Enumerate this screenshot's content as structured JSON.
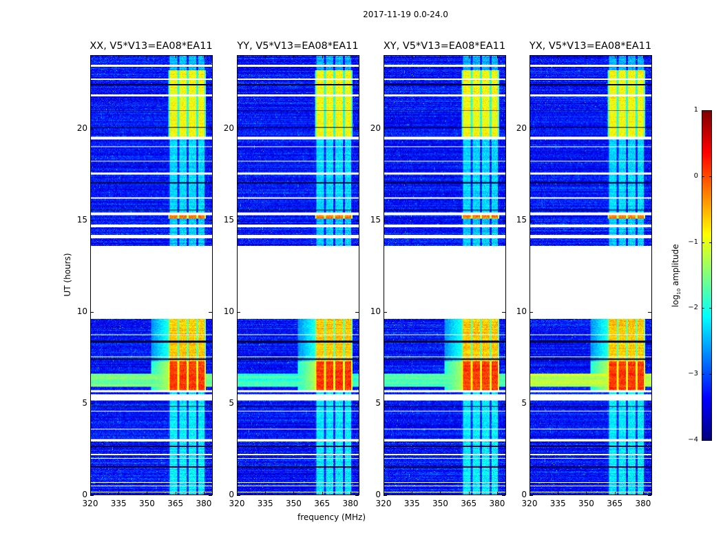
{
  "chart_data": {
    "type": "heatmap",
    "title": "2017-11-19 0.0-24.0",
    "xlabel": "frequency (MHz)",
    "ylabel": "UT (hours)",
    "xlim": [
      320,
      384.4
    ],
    "ylim": [
      0,
      24
    ],
    "xticks": [
      320,
      335,
      350,
      365,
      380
    ],
    "yticks": [
      0,
      5,
      10,
      15,
      20
    ],
    "colormap": "jet",
    "colorbar": {
      "label_main": "log",
      "label_sub": "10",
      "label_rest": " amplitude",
      "range": [
        -4,
        1
      ],
      "ticks": [
        1,
        0,
        -1,
        -2,
        -3,
        -4
      ],
      "tick_labels": [
        "1",
        "0",
        "−1",
        "−2",
        "−3",
        "−4"
      ]
    },
    "panels": [
      {
        "title": "XX, V5*V13=EA08*EA11",
        "broadband_rfi_level": -1.6
      },
      {
        "title": "YY, V5*V13=EA08*EA11",
        "broadband_rfi_level": -1.9
      },
      {
        "title": "XY, V5*V13=EA08*EA11",
        "broadband_rfi_level": -1.7
      },
      {
        "title": "YX, V5*V13=EA08*EA11",
        "broadband_rfi_level": -1.2
      }
    ],
    "background_level": -3.3,
    "rfi_channels_mhz": [
      [
        362,
        366
      ],
      [
        367,
        371
      ],
      [
        372,
        376
      ],
      [
        377,
        380.5
      ]
    ],
    "rfi_time_segments": [
      {
        "hours": [
          0,
          5.7
        ],
        "level": -2.2
      },
      {
        "hours": [
          5.7,
          7.3
        ],
        "level": 0.1
      },
      {
        "hours": [
          7.3,
          9.6
        ],
        "level": -0.6
      },
      {
        "hours": [
          13.6,
          15.1
        ],
        "level": -2.4
      },
      {
        "hours": [
          15.1,
          15.3
        ],
        "level": -0.2
      },
      {
        "hours": [
          15.3,
          19.5
        ],
        "level": -2.3
      },
      {
        "hours": [
          19.5,
          23.2
        ],
        "level": -0.9
      },
      {
        "hours": [
          23.2,
          24
        ],
        "level": -2.5
      }
    ],
    "flagged_hours": [
      [
        0.1,
        0.15
      ],
      [
        0.45,
        0.5
      ],
      [
        0.62,
        0.66
      ],
      [
        1.95,
        2.0
      ],
      [
        2.15,
        2.2
      ],
      [
        2.9,
        3.05
      ],
      [
        3.55,
        3.6
      ],
      [
        4.55,
        4.6
      ],
      [
        5.15,
        5.5
      ],
      [
        5.6,
        5.7
      ],
      [
        7.5,
        7.55
      ],
      [
        8.7,
        8.75
      ],
      [
        9.6,
        13.6
      ],
      [
        14.0,
        14.2
      ],
      [
        14.6,
        14.75
      ],
      [
        15.3,
        15.45
      ],
      [
        16.2,
        16.25
      ],
      [
        17.5,
        17.6
      ],
      [
        18.2,
        18.25
      ],
      [
        19.0,
        19.05
      ],
      [
        19.4,
        19.55
      ],
      [
        21.8,
        21.9
      ],
      [
        22.7,
        22.75
      ],
      [
        23.4,
        23.5
      ]
    ],
    "dead_hours": [
      [
        1.45,
        1.55
      ],
      [
        2.6,
        2.65
      ],
      [
        4.8,
        4.85
      ],
      [
        7.35,
        7.45
      ],
      [
        8.3,
        8.4
      ],
      [
        15.55,
        15.6
      ],
      [
        17.0,
        17.1
      ],
      [
        20.05,
        20.1
      ],
      [
        21.0,
        21.05
      ],
      [
        22.4,
        22.45
      ]
    ]
  }
}
